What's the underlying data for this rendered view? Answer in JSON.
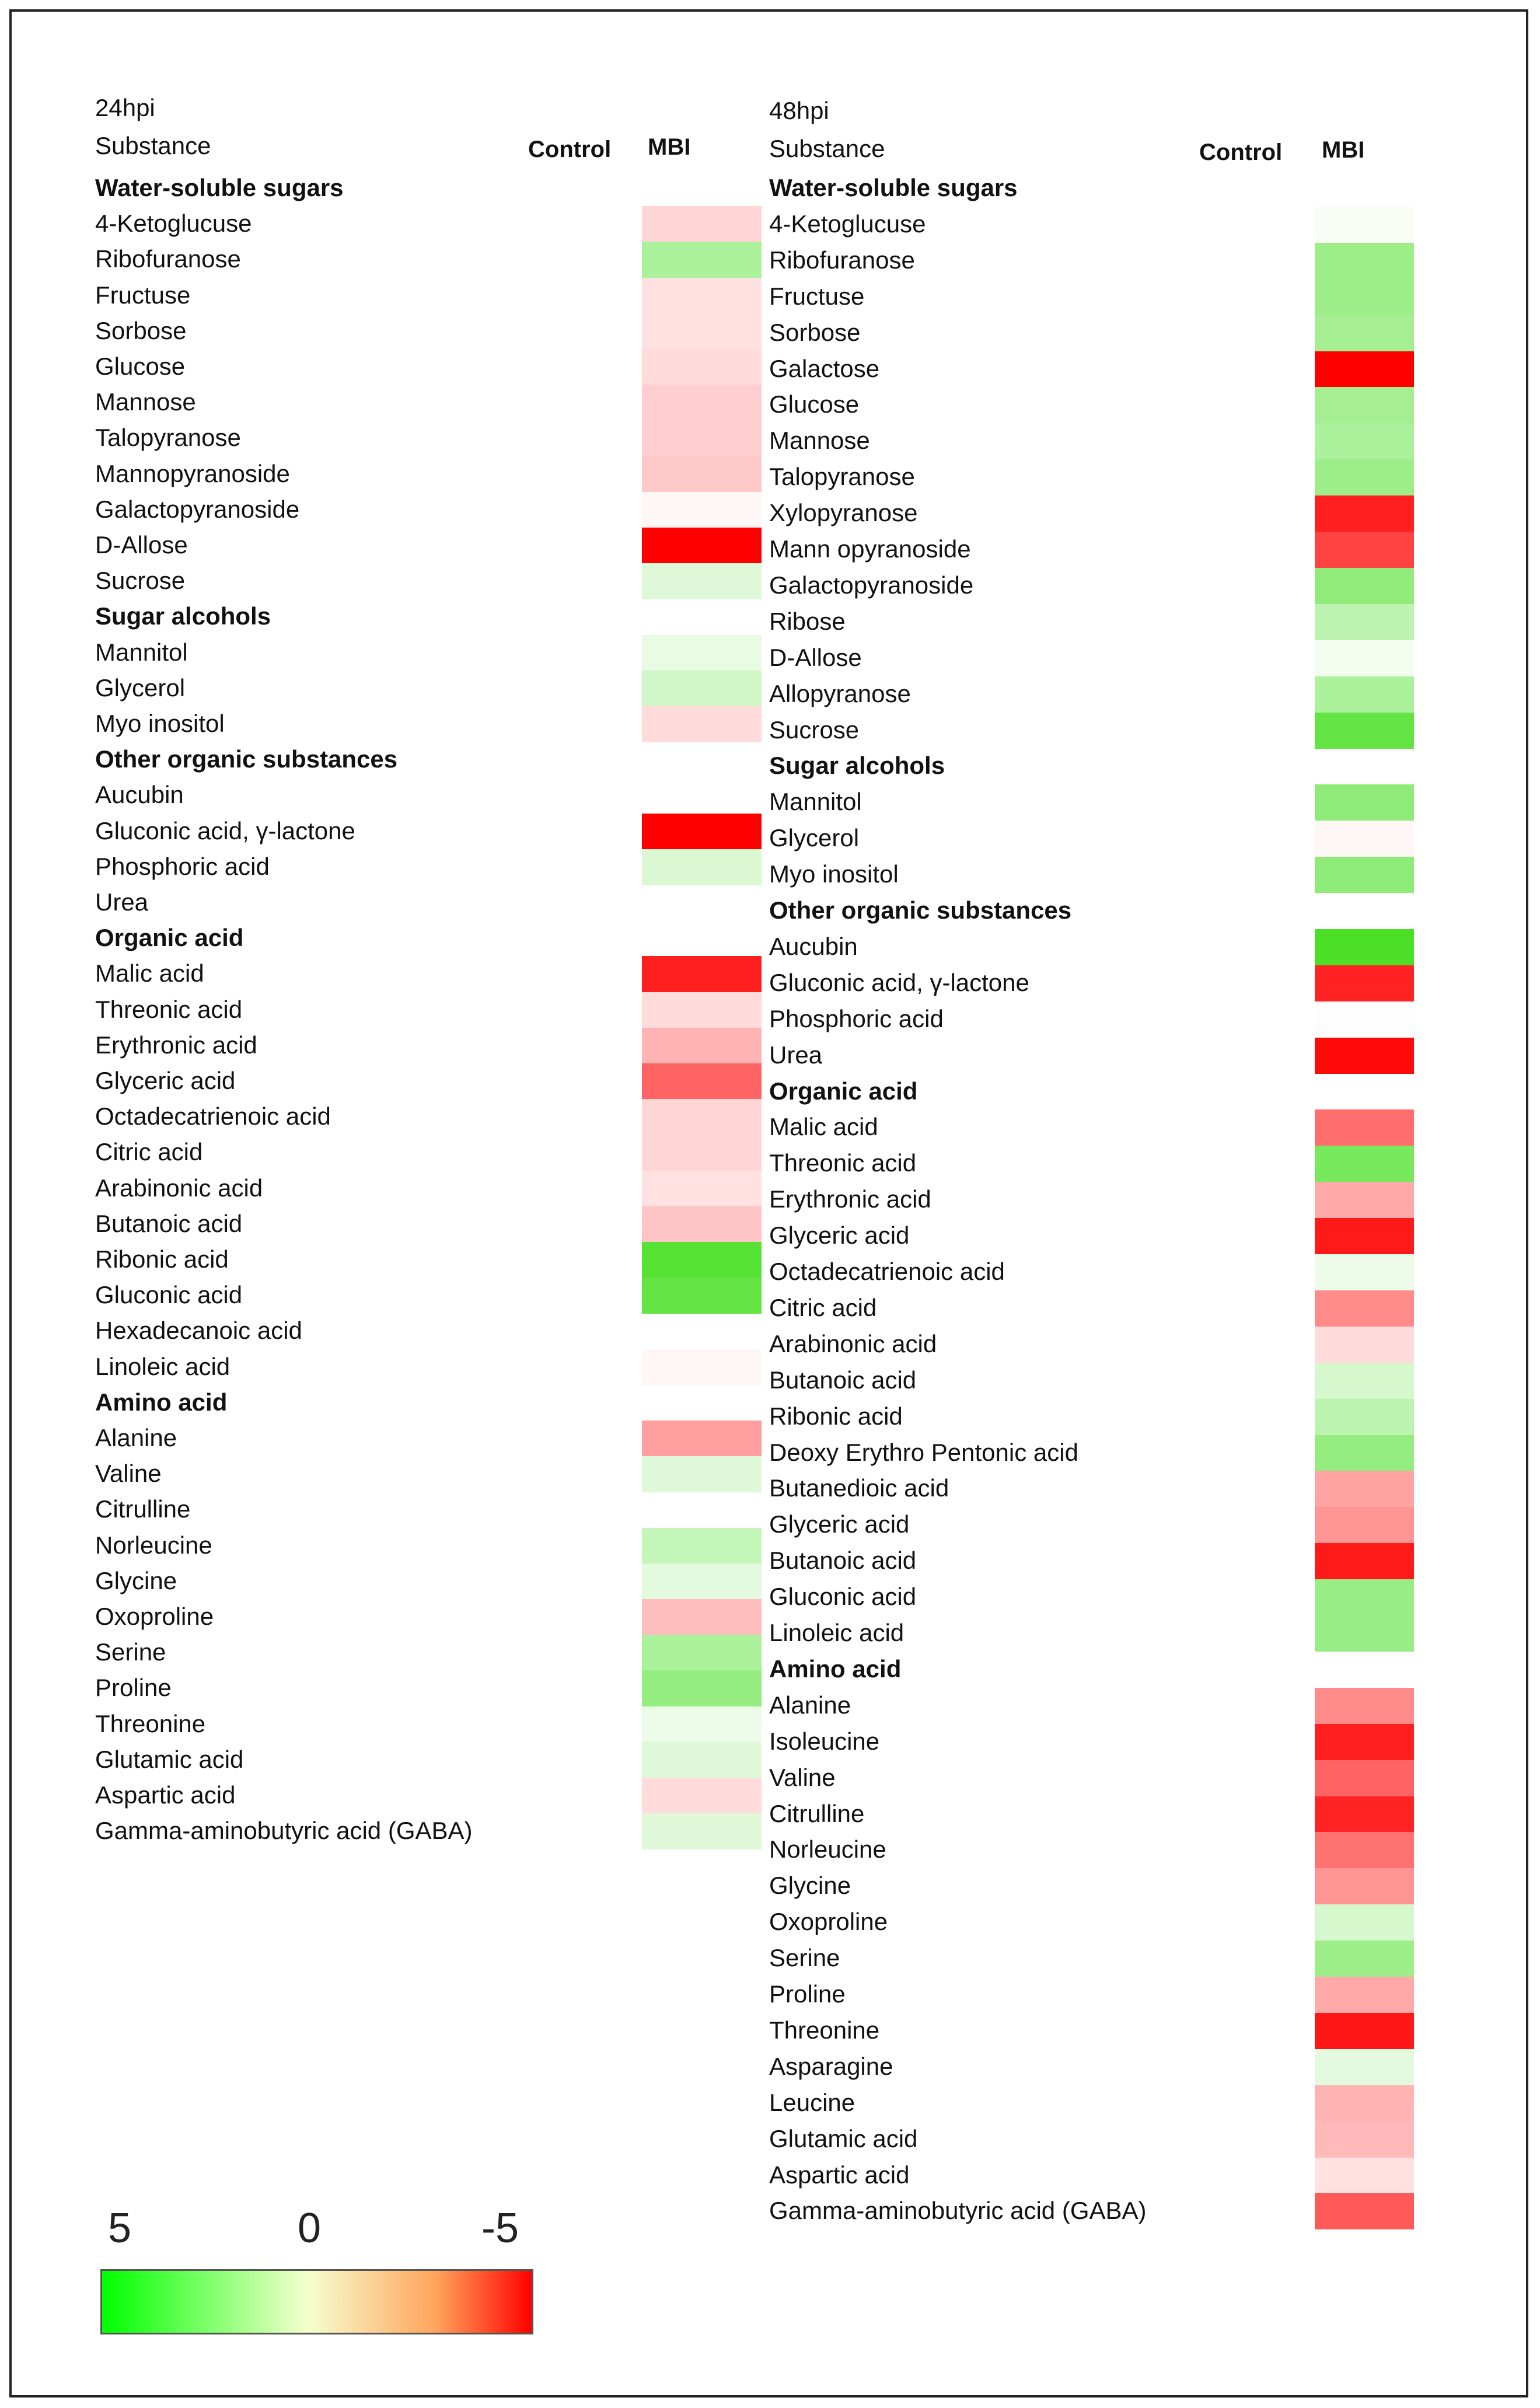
{
  "color_scale": {
    "labels": [
      "5",
      "0",
      "-5"
    ],
    "min": -5,
    "max": 5,
    "stops": [
      "#00ff00",
      "#f6ffcf",
      "#ffa35a",
      "#ff0000"
    ]
  },
  "chart_data": [
    {
      "type": "heatmap",
      "title": "24hpi",
      "row_header": "Substance",
      "columns": [
        "Control",
        "MBI"
      ],
      "rows": [
        {
          "label": "Water-soluble sugars",
          "category": true
        },
        {
          "label": "4-Ketoglucuse",
          "values": [
            null,
            -0.6
          ]
        },
        {
          "label": "Ribofuranose",
          "values": [
            null,
            1.8
          ]
        },
        {
          "label": "Fructuse",
          "values": [
            null,
            -0.4
          ]
        },
        {
          "label": "Sorbose",
          "values": [
            null,
            -0.4
          ]
        },
        {
          "label": "Glucose",
          "values": [
            null,
            -0.5
          ]
        },
        {
          "label": "Mannose",
          "values": [
            null,
            -0.7
          ]
        },
        {
          "label": "Talopyranose",
          "values": [
            null,
            -0.7
          ]
        },
        {
          "label": "Mannopyranoside",
          "values": [
            null,
            -0.8
          ]
        },
        {
          "label": "Galactopyranoside",
          "values": [
            null,
            -0.1
          ]
        },
        {
          "label": "D-Allose",
          "values": [
            null,
            -5
          ]
        },
        {
          "label": "Sucrose",
          "values": [
            null,
            0.6
          ]
        },
        {
          "label": "Sugar alcohols",
          "category": true
        },
        {
          "label": "Mannitol",
          "values": [
            null,
            0.4
          ]
        },
        {
          "label": "Glycerol",
          "values": [
            null,
            0.9
          ]
        },
        {
          "label": "Myo inositol",
          "values": [
            null,
            -0.5
          ]
        },
        {
          "label": "Other organic substances",
          "category": true
        },
        {
          "label": "Aucubin",
          "values": [
            null,
            null
          ]
        },
        {
          "label": "Gluconic acid, γ-lactone",
          "values": [
            null,
            -5
          ]
        },
        {
          "label": "Phosphoric acid",
          "values": [
            null,
            0.7
          ]
        },
        {
          "label": "Urea",
          "values": [
            null,
            null
          ]
        },
        {
          "label": "Organic acid",
          "category": true
        },
        {
          "label": "Malic acid",
          "values": [
            null,
            -4.3
          ]
        },
        {
          "label": "Threonic acid",
          "values": [
            null,
            -0.5
          ]
        },
        {
          "label": "Erythronic acid",
          "values": [
            null,
            -1.2
          ]
        },
        {
          "label": "Glyceric acid",
          "values": [
            null,
            -2.8
          ]
        },
        {
          "label": "Octadecatrienoic acid",
          "values": [
            null,
            -0.6
          ]
        },
        {
          "label": "Citric acid",
          "values": [
            null,
            -0.6
          ]
        },
        {
          "label": "Arabinonic acid",
          "values": [
            null,
            -0.4
          ]
        },
        {
          "label": "Butanoic acid",
          "values": [
            null,
            -0.9
          ]
        },
        {
          "label": "Ribonic acid",
          "values": [
            null,
            4.2
          ]
        },
        {
          "label": "Gluconic acid",
          "values": [
            null,
            3.8
          ]
        },
        {
          "label": "Hexadecanoic acid",
          "values": [
            null,
            null
          ]
        },
        {
          "label": "Linoleic acid",
          "values": [
            null,
            -0.1
          ]
        },
        {
          "label": "Amino acid",
          "category": true
        },
        {
          "label": "Alanine",
          "values": [
            null,
            -1.6
          ]
        },
        {
          "label": "Valine",
          "values": [
            null,
            0.6
          ]
        },
        {
          "label": "Citrulline",
          "values": [
            null,
            null
          ]
        },
        {
          "label": "Norleucine",
          "values": [
            null,
            1.2
          ]
        },
        {
          "label": "Glycine",
          "values": [
            null,
            0.5
          ]
        },
        {
          "label": "Oxoproline",
          "values": [
            null,
            -1.0
          ]
        },
        {
          "label": "Serine",
          "values": [
            null,
            1.8
          ]
        },
        {
          "label": "Proline",
          "values": [
            null,
            2.4
          ]
        },
        {
          "label": "Threonine",
          "values": [
            null,
            0.3
          ]
        },
        {
          "label": "Glutamic acid",
          "values": [
            null,
            0.6
          ]
        },
        {
          "label": "Aspartic acid",
          "values": [
            null,
            -0.5
          ]
        },
        {
          "label": "Gamma-aminobutyric acid (GABA)",
          "values": [
            null,
            0.6
          ]
        }
      ]
    },
    {
      "type": "heatmap",
      "title": "48hpi",
      "row_header": "Substance",
      "columns": [
        "Control",
        "MBI"
      ],
      "rows": [
        {
          "label": "Water-soluble sugars",
          "category": true
        },
        {
          "label": "4-Ketoglucuse",
          "values": [
            null,
            0.1
          ]
        },
        {
          "label": "Ribofuranose",
          "values": [
            null,
            2.2
          ]
        },
        {
          "label": "Fructuse",
          "values": [
            null,
            2.2
          ]
        },
        {
          "label": "Sorbose",
          "values": [
            null,
            2.0
          ]
        },
        {
          "label": "Galactose",
          "values": [
            null,
            -5
          ]
        },
        {
          "label": "Glucose",
          "values": [
            null,
            2.0
          ]
        },
        {
          "label": "Mannose",
          "values": [
            null,
            1.8
          ]
        },
        {
          "label": "Talopyranose",
          "values": [
            null,
            2.2
          ]
        },
        {
          "label": "Xylopyranose",
          "values": [
            null,
            -4.3
          ]
        },
        {
          "label": "Mann opyranoside",
          "values": [
            null,
            -3.5
          ]
        },
        {
          "label": "Galactopyranoside",
          "values": [
            null,
            2.5
          ]
        },
        {
          "label": "Ribose",
          "values": [
            null,
            1.4
          ]
        },
        {
          "label": "D-Allose",
          "values": [
            null,
            0.2
          ]
        },
        {
          "label": "Allopyranose",
          "values": [
            null,
            1.8
          ]
        },
        {
          "label": "Sucrose",
          "values": [
            null,
            3.8
          ]
        },
        {
          "label": "Sugar alcohols",
          "category": true
        },
        {
          "label": "Mannitol",
          "values": [
            null,
            2.6
          ]
        },
        {
          "label": "Glycerol",
          "values": [
            null,
            -0.1
          ]
        },
        {
          "label": "Myo inositol",
          "values": [
            null,
            2.6
          ]
        },
        {
          "label": "Other organic substances",
          "category": true
        },
        {
          "label": "Aucubin",
          "values": [
            null,
            4.5
          ]
        },
        {
          "label": "Gluconic acid, γ-lactone",
          "values": [
            null,
            -4.2
          ]
        },
        {
          "label": "Phosphoric acid",
          "values": [
            null,
            0
          ]
        },
        {
          "label": "Urea",
          "values": [
            null,
            -4.8
          ]
        },
        {
          "label": "Organic acid",
          "category": true
        },
        {
          "label": "Malic acid",
          "values": [
            null,
            -2.6
          ]
        },
        {
          "label": "Threonic acid",
          "values": [
            null,
            3.2
          ]
        },
        {
          "label": "Erythronic acid",
          "values": [
            null,
            -1.4
          ]
        },
        {
          "label": "Glyceric acid",
          "values": [
            null,
            -4.4
          ]
        },
        {
          "label": "Octadecatrienoic acid",
          "values": [
            null,
            0.3
          ]
        },
        {
          "label": "Citric acid",
          "values": [
            null,
            -2.0
          ]
        },
        {
          "label": "Arabinonic acid",
          "values": [
            null,
            -0.5
          ]
        },
        {
          "label": "Butanoic acid",
          "values": [
            null,
            0.8
          ]
        },
        {
          "label": "Ribonic acid",
          "values": [
            null,
            1.4
          ]
        },
        {
          "label": "Deoxy Erythro Pentonic acid",
          "values": [
            null,
            2.4
          ]
        },
        {
          "label": "Butanedioic acid",
          "values": [
            null,
            -1.5
          ]
        },
        {
          "label": "Glyceric acid",
          "values": [
            null,
            -1.8
          ]
        },
        {
          "label": "Butanoic acid",
          "values": [
            null,
            -4.4
          ]
        },
        {
          "label": "Gluconic acid",
          "values": [
            null,
            2.3
          ]
        },
        {
          "label": "Linoleic acid",
          "values": [
            null,
            2.3
          ]
        },
        {
          "label": "Amino acid",
          "category": true
        },
        {
          "label": "Alanine",
          "values": [
            null,
            -2.0
          ]
        },
        {
          "label": "Isoleucine",
          "values": [
            null,
            -4.3
          ]
        },
        {
          "label": "Valine",
          "values": [
            null,
            -2.8
          ]
        },
        {
          "label": "Citrulline",
          "values": [
            null,
            -4.2
          ]
        },
        {
          "label": "Norleucine",
          "values": [
            null,
            -2.5
          ]
        },
        {
          "label": "Glycine",
          "values": [
            null,
            -1.8
          ]
        },
        {
          "label": "Oxoproline",
          "values": [
            null,
            0.8
          ]
        },
        {
          "label": "Serine",
          "values": [
            null,
            2.2
          ]
        },
        {
          "label": "Proline",
          "values": [
            null,
            -1.4
          ]
        },
        {
          "label": "Threonine",
          "values": [
            null,
            -4.5
          ]
        },
        {
          "label": "Asparagine",
          "values": [
            null,
            0.5
          ]
        },
        {
          "label": "Leucine",
          "values": [
            null,
            -1.2
          ]
        },
        {
          "label": "Glutamic acid",
          "values": [
            null,
            -1.1
          ]
        },
        {
          "label": "Aspartic acid",
          "values": [
            null,
            -0.4
          ]
        },
        {
          "label": "Gamma-aminobutyric acid (GABA)",
          "values": [
            null,
            -3.0
          ]
        }
      ]
    }
  ]
}
